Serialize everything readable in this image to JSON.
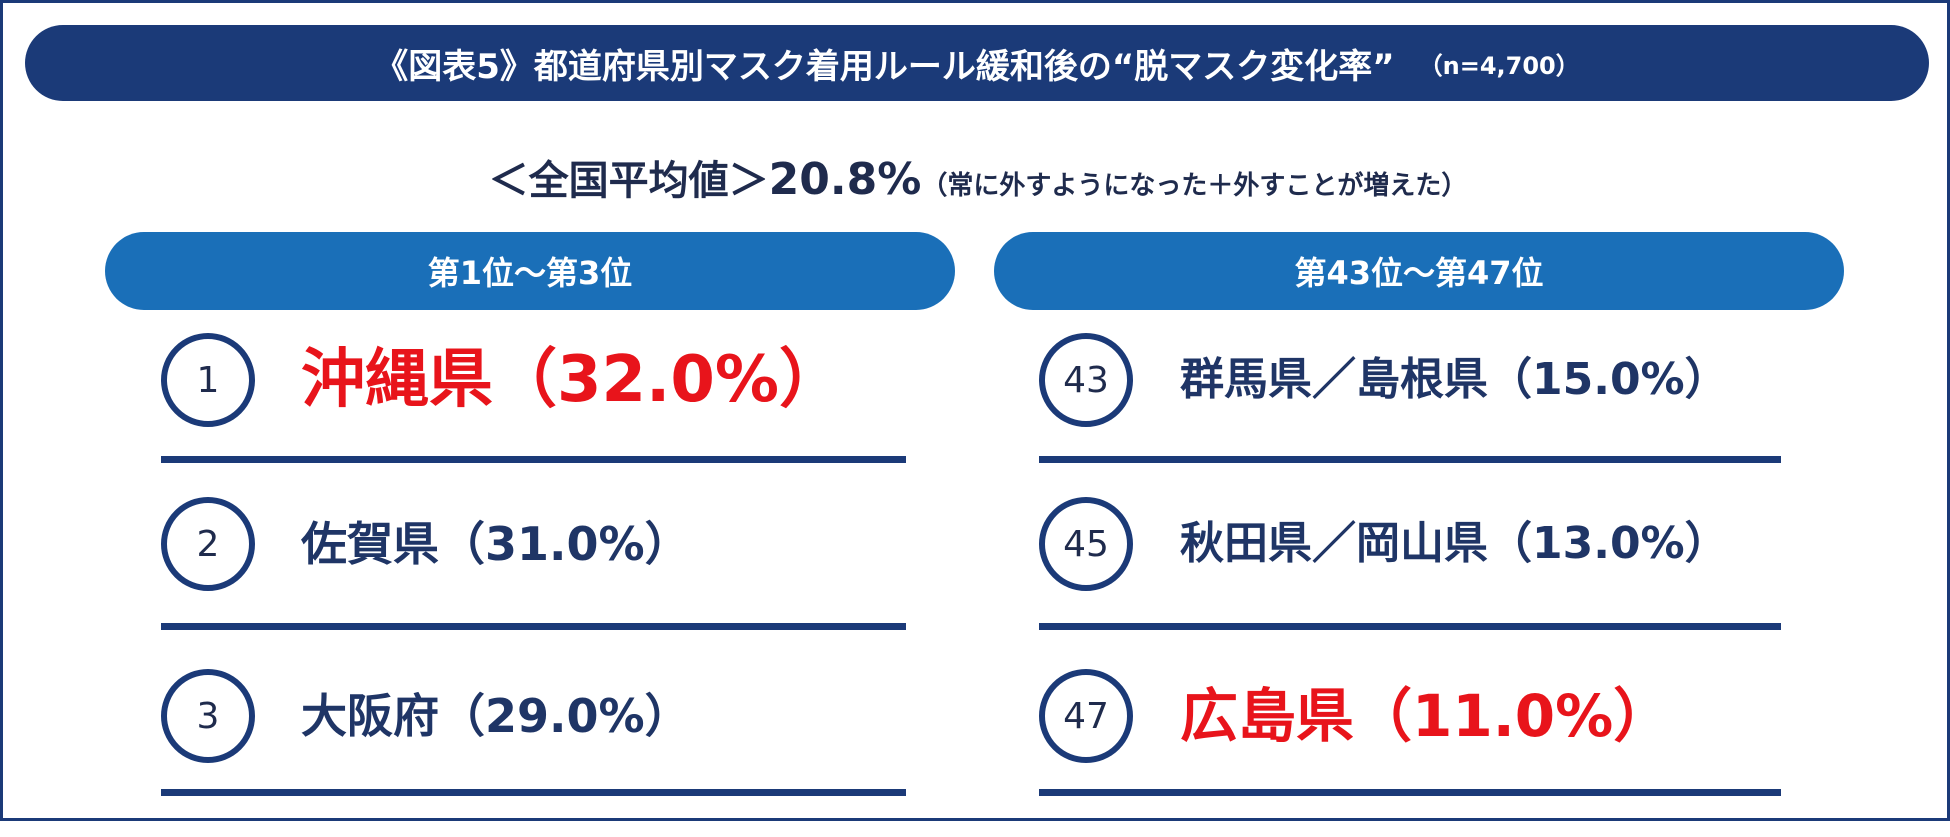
{
  "title": {
    "main": "《図表5》都道府県別マスク着用ルール緩和後の“脱マスク変化率”",
    "sample": "（n=4,700）"
  },
  "average": {
    "label": "＜全国平均値＞",
    "value": "20.8%",
    "note": "（常に外すようになった＋外すことが増えた）"
  },
  "left_panel": {
    "header": "第1位～第3位",
    "rows": [
      {
        "rank": "1",
        "text": "沖縄県（32.0%）",
        "highlight": true
      },
      {
        "rank": "2",
        "text": "佐賀県（31.0%）",
        "highlight": false
      },
      {
        "rank": "3",
        "text": "大阪府（29.0%）",
        "highlight": false
      }
    ]
  },
  "right_panel": {
    "header": "第43位～第47位",
    "rows": [
      {
        "rank": "43",
        "text": "群馬県／島根県（15.0%）",
        "highlight": false
      },
      {
        "rank": "45",
        "text": "秋田県／岡山県（13.0%）",
        "highlight": false
      },
      {
        "rank": "47",
        "text": "広島県（11.0%）",
        "highlight": true
      }
    ]
  },
  "colors": {
    "navy": "#1b3a78",
    "blue_pill": "#1a6fb8",
    "highlight_red": "#e8141b",
    "text_navy": "#1f3566"
  }
}
